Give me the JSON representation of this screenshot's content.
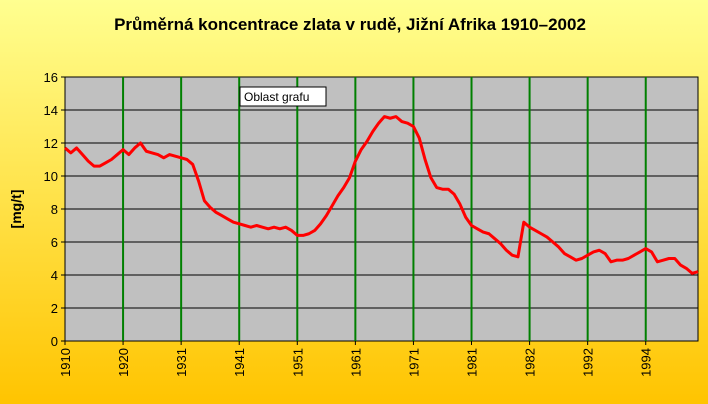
{
  "chart_data": {
    "type": "line",
    "title": "Průměrná koncentrace zlata v rudě, Jižní Afrika 1910–2002",
    "y_label": "[mg/t]",
    "annotation": "Oblast grafu",
    "categories": [
      "1910",
      null,
      null,
      null,
      null,
      null,
      null,
      null,
      null,
      null,
      "1920",
      null,
      null,
      null,
      null,
      null,
      null,
      null,
      null,
      null,
      "1931",
      null,
      null,
      null,
      null,
      null,
      null,
      null,
      null,
      null,
      "1941",
      null,
      null,
      null,
      null,
      null,
      null,
      null,
      null,
      null,
      "1951",
      null,
      null,
      null,
      null,
      null,
      null,
      null,
      null,
      null,
      "1961",
      null,
      null,
      null,
      null,
      null,
      null,
      null,
      null,
      null,
      "1971",
      null,
      null,
      null,
      null,
      null,
      null,
      null,
      null,
      null,
      "1981",
      null,
      null,
      null,
      null,
      null,
      null,
      null,
      null,
      null,
      "1982",
      null,
      null,
      null,
      null,
      null,
      null,
      null,
      null,
      null,
      "1992",
      null,
      null,
      null,
      null,
      null,
      null,
      null,
      null,
      null,
      "1994",
      null,
      null,
      null,
      null,
      null,
      null,
      null,
      null,
      null
    ],
    "values": [
      11.7,
      11.4,
      11.7,
      11.3,
      10.9,
      10.6,
      10.6,
      10.8,
      11.0,
      11.3,
      11.6,
      11.3,
      11.7,
      12.0,
      11.5,
      11.4,
      11.3,
      11.1,
      11.3,
      11.2,
      11.1,
      11.0,
      10.7,
      9.7,
      8.5,
      8.1,
      7.8,
      7.6,
      7.4,
      7.2,
      7.1,
      7.0,
      6.9,
      7.0,
      6.9,
      6.8,
      6.9,
      6.8,
      6.9,
      6.7,
      6.4,
      6.4,
      6.5,
      6.7,
      7.1,
      7.6,
      8.2,
      8.8,
      9.3,
      9.9,
      10.9,
      11.6,
      12.1,
      12.7,
      13.2,
      13.6,
      13.5,
      13.6,
      13.3,
      13.2,
      13.0,
      12.3,
      11.0,
      9.9,
      9.3,
      9.2,
      9.2,
      8.9,
      8.3,
      7.5,
      7.0,
      6.8,
      6.6,
      6.5,
      6.2,
      5.9,
      5.5,
      5.2,
      5.1,
      7.2,
      6.9,
      6.7,
      6.5,
      6.3,
      6.0,
      5.7,
      5.3,
      5.1,
      4.9,
      5.0,
      5.2,
      5.4,
      5.5,
      5.3,
      4.8,
      4.9,
      4.9,
      5.0,
      5.2,
      5.4,
      5.6,
      5.4,
      4.8,
      4.9,
      5.0,
      5.0,
      4.6,
      4.4,
      4.1,
      4.2
    ],
    "color": "#ff0000",
    "ylim": [
      0,
      16
    ],
    "yticks": [
      0,
      2,
      4,
      6,
      8,
      10,
      12,
      14,
      16
    ],
    "grid": true
  }
}
